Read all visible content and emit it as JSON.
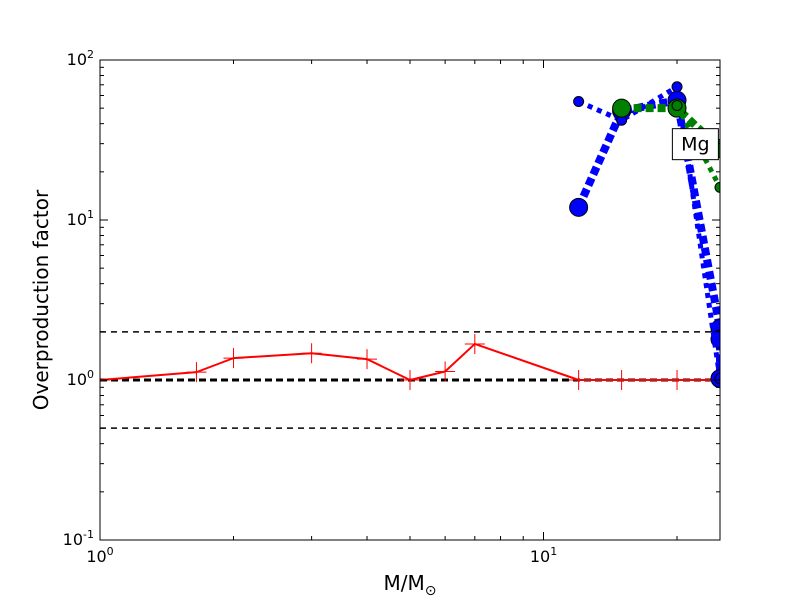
{
  "chart_data": {
    "type": "line",
    "xlabel": "M/M",
    "xlabel_subscript": "⊙",
    "ylabel": "Overproduction factor",
    "xscale": "log",
    "yscale": "log",
    "xlim": [
      1,
      25
    ],
    "ylim": [
      0.1,
      100
    ],
    "x_ticks": [
      {
        "value": 1,
        "base": "10",
        "exp": "0"
      },
      {
        "value": 10,
        "base": "10",
        "exp": "1"
      }
    ],
    "y_ticks": [
      {
        "value": 0.1,
        "base": "10",
        "exp": "-1"
      },
      {
        "value": 1,
        "base": "10",
        "exp": "0"
      },
      {
        "value": 10,
        "base": "10",
        "exp": "1"
      },
      {
        "value": 100,
        "base": "10",
        "exp": "2"
      }
    ],
    "annotation": {
      "text": "Mg",
      "x": 22,
      "y": 30
    },
    "reference_lines": [
      {
        "y": 2,
        "style": "dashed",
        "color": "#000000",
        "width": 1.5
      },
      {
        "y": 1,
        "style": "dashed",
        "color": "#000000",
        "width": 3
      },
      {
        "y": 0.5,
        "style": "dashed",
        "color": "#000000",
        "width": 1.5
      }
    ],
    "series": [
      {
        "color": "#ff0000",
        "style": "solid",
        "marker": "plus",
        "x": [
          1,
          1.65,
          2,
          3,
          4,
          5,
          6,
          7,
          12,
          15,
          20,
          25
        ],
        "y": [
          1.0,
          1.12,
          1.37,
          1.47,
          1.35,
          1.0,
          1.13,
          1.68,
          1.0,
          1.0,
          1.0,
          1.0
        ]
      },
      {
        "color": "#0000ff",
        "style": "dotted-thick",
        "marker": "circle-large",
        "x": [
          12,
          15,
          20,
          25,
          25,
          25
        ],
        "y": [
          12,
          48,
          56,
          2.1,
          1.8,
          1.02
        ]
      },
      {
        "color": "#0000ff",
        "style": "dotted",
        "marker": "circle-small",
        "x": [
          12,
          15,
          20,
          25
        ],
        "y": [
          55,
          42,
          68,
          1.02
        ]
      },
      {
        "color": "#008000",
        "style": "dotted-thick",
        "marker": "circle-large",
        "x": [
          15,
          20,
          25
        ],
        "y": [
          50,
          50,
          28
        ]
      },
      {
        "color": "#008000",
        "style": "dotted",
        "marker": "circle-small",
        "x": [
          20,
          25
        ],
        "y": [
          52,
          16
        ]
      }
    ]
  }
}
